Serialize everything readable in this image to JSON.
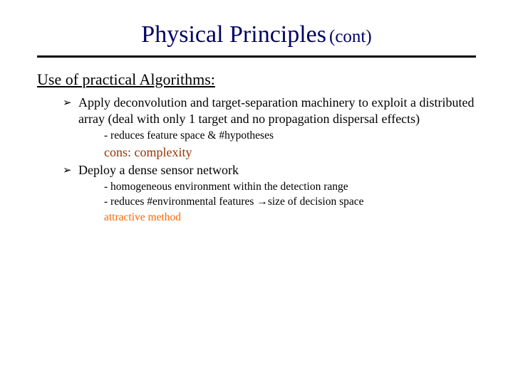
{
  "colors": {
    "title": "#000066",
    "body": "#000000",
    "cons": "#993300",
    "attractive": "#ff6600",
    "background": "#ffffff",
    "rule": "#000000"
  },
  "typography": {
    "title_main_pt": 34,
    "title_cont_pt": 25,
    "heading_pt": 22,
    "body_pt": 18,
    "subnote_pt": 15.5,
    "family": "Times New Roman"
  },
  "title": {
    "main": "Physical Principles",
    "cont": "(cont)"
  },
  "section_heading": "Use of practical Algorithms:",
  "items": [
    {
      "text": "Apply deconvolution and target-separation machinery to exploit a distributed array (deal with only 1 target and no propagation dispersal effects)",
      "subnotes": [
        "- reduces feature space & #hypotheses"
      ],
      "cons": "cons: complexity"
    },
    {
      "text": "Deploy a dense sensor network",
      "subnotes": [
        "- homogeneous environment within the detection range",
        "- reduces #environmental features →size of decision space"
      ],
      "attractive": "attractive method"
    }
  ],
  "bullet_glyph": "➢"
}
